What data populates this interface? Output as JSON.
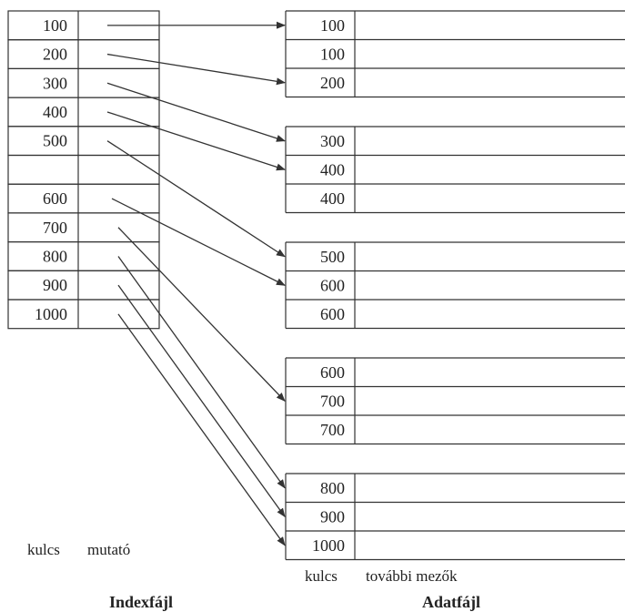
{
  "index_file": {
    "title": "Indexfájl",
    "column_labels": [
      "kulcs",
      "mutató"
    ],
    "entries": [
      "100",
      "200",
      "300",
      "400",
      "500",
      "",
      "600",
      "700",
      "800",
      "900",
      "1000"
    ]
  },
  "data_file": {
    "title": "Adatfájl",
    "column_labels": [
      "kulcs",
      "további mezők"
    ],
    "blocks": [
      [
        "100",
        "100",
        "200"
      ],
      [
        "300",
        "400",
        "400"
      ],
      [
        "500",
        "600",
        "600"
      ],
      [
        "600",
        "700",
        "700"
      ],
      [
        "800",
        "900",
        "1000"
      ]
    ]
  },
  "pointers": [
    {
      "from": 0,
      "to_block": 0,
      "to_row": 0
    },
    {
      "from": 1,
      "to_block": 0,
      "to_row": 2
    },
    {
      "from": 2,
      "to_block": 1,
      "to_row": 0
    },
    {
      "from": 3,
      "to_block": 1,
      "to_row": 1
    },
    {
      "from": 4,
      "to_block": 2,
      "to_row": 0
    },
    {
      "from": 6,
      "to_block": 2,
      "to_row": 1
    },
    {
      "from": 7,
      "to_block": 3,
      "to_row": 1
    },
    {
      "from": 8,
      "to_block": 4,
      "to_row": 0
    },
    {
      "from": 9,
      "to_block": 4,
      "to_row": 1
    },
    {
      "from": 10,
      "to_block": 4,
      "to_row": 2
    }
  ]
}
